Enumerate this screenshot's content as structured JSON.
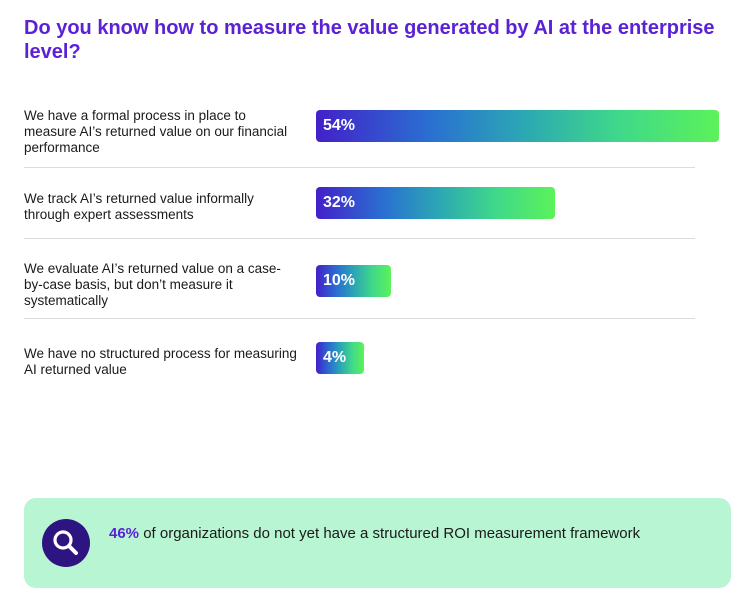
{
  "chart_data": {
    "type": "bar",
    "orientation": "horizontal",
    "title": "Do you know how to measure the value generated by AI at the enterprise level?",
    "categories": [
      "We have a formal process in place to measure AI’s returned value on our financial performance",
      "We track AI’s returned value informally through expert assessments",
      "We evaluate AI’s returned value on a case-by-case basis, but don’t measure it systematically",
      "We have no structured process for measuring AI returned value"
    ],
    "values": [
      54,
      32,
      10,
      4
    ],
    "value_labels": [
      "54%",
      "32%",
      "10%",
      "4%"
    ],
    "unit": "%",
    "xlim": [
      0,
      54
    ],
    "grid": false,
    "legend": "none",
    "colors": {
      "title": "#5b21d6",
      "bar_start": "#4320c9",
      "bar_end": "#5cf25a"
    }
  },
  "callout": {
    "stat": "46%",
    "text": " of organizations do not yet have a structured ROI measurement framework",
    "icon": "magnifier-icon",
    "background": "#b8f5d3",
    "icon_background": "#2d1480"
  }
}
